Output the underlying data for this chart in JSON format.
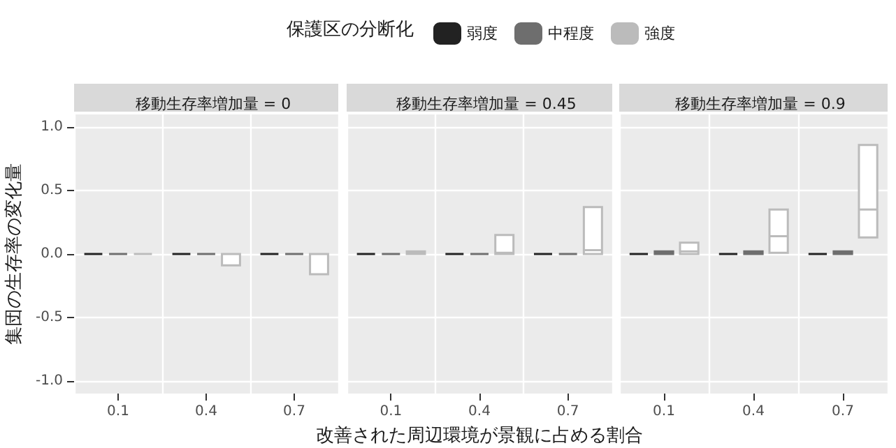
{
  "chart_data": [
    {
      "type": "box",
      "title": "移動生存率増加量 = 0",
      "ylabel": "集団の生存率の変化量",
      "legend_title": "保護区の分断化",
      "categories": [
        "0.1",
        "0.4",
        "0.7"
      ],
      "ylim": [
        -1.1,
        1.1
      ],
      "yticks": [
        {
          "value": -1,
          "label": "-1.0"
        },
        -0.5,
        {
          "value": 0,
          "label": "0.0"
        },
        0.5,
        {
          "value": 1,
          "label": "1.0"
        }
      ],
      "grid": true,
      "legend": "top",
      "series": [
        {
          "name": "弱度",
          "color": "#222222",
          "boxes": [
            {
              "low": 0,
              "q1": 0,
              "median": 0,
              "q3": 0,
              "high": 0
            },
            {
              "low": 0,
              "q1": 0,
              "median": 0,
              "q3": 0,
              "high": 0
            },
            {
              "low": 0,
              "q1": 0,
              "median": 0,
              "q3": 0,
              "high": 0
            }
          ]
        },
        {
          "name": "中程度",
          "color": "#6e6e6e",
          "boxes": [
            {
              "low": 0,
              "q1": 0,
              "median": 0,
              "q3": 0,
              "high": 0
            },
            {
              "low": 0,
              "q1": 0,
              "median": 0,
              "q3": 0,
              "high": 0
            },
            {
              "low": 0,
              "q1": 0,
              "median": 0,
              "q3": 0,
              "high": 0
            }
          ]
        },
        {
          "name": "強度",
          "color": "#bbbbbb",
          "boxes": [
            {
              "low": 0,
              "q1": 0,
              "median": 0,
              "q3": 0,
              "high": 0
            },
            {
              "low": -0.09,
              "q1": -0.09,
              "median": 0,
              "q3": 0,
              "high": 0
            },
            {
              "low": -0.16,
              "q1": -0.16,
              "median": 0,
              "q3": 0,
              "high": 0
            }
          ]
        }
      ]
    },
    {
      "type": "box",
      "title": "移動生存率増加量 = 0.45",
      "xlabel": "改善された周辺環境が景観に占める割合",
      "categories": [
        "0.1",
        "0.4",
        "0.7"
      ],
      "ylim": [
        -1.1,
        1.1
      ],
      "yticks": [
        -1,
        -0.5,
        0,
        0.5,
        1
      ],
      "grid": true,
      "legend": false,
      "tick_labels": "x",
      "series": [
        {
          "color": "#222222",
          "boxes": [
            {
              "low": 0,
              "q1": 0,
              "median": 0,
              "q3": 0,
              "high": 0
            },
            {
              "low": 0,
              "q1": 0,
              "median": 0,
              "q3": 0,
              "high": 0
            },
            {
              "low": 0,
              "q1": 0,
              "median": 0,
              "q3": 0,
              "high": 0
            }
          ]
        },
        {
          "color": "#6e6e6e",
          "boxes": [
            {
              "low": 0,
              "q1": 0,
              "median": 0,
              "q3": 0,
              "high": 0
            },
            {
              "low": 0,
              "q1": 0,
              "median": 0,
              "q3": 0,
              "high": 0
            },
            {
              "low": 0,
              "q1": 0,
              "median": 0,
              "q3": 0,
              "high": 0
            }
          ]
        },
        {
          "color": "#bbbbbb",
          "boxes": [
            {
              "low": 0,
              "q1": 0,
              "median": 0.01,
              "q3": 0.02,
              "high": 0.02
            },
            {
              "low": 0,
              "q1": 0,
              "median": 0.01,
              "q3": 0.15,
              "high": 0.15
            },
            {
              "low": 0,
              "q1": 0,
              "median": 0.03,
              "q3": 0.37,
              "high": 0.37
            }
          ]
        }
      ]
    },
    {
      "type": "box",
      "title": "移動生存率増加量 = 0.9",
      "categories": [
        "0.1",
        "0.4",
        "0.7"
      ],
      "ylim": [
        -1.1,
        1.1
      ],
      "yticks": [
        -1,
        -0.5,
        0,
        0.5,
        1
      ],
      "grid": true,
      "legend": false,
      "tick_labels": "x",
      "series": [
        {
          "color": "#222222",
          "boxes": [
            {
              "low": 0,
              "q1": 0,
              "median": 0,
              "q3": 0,
              "high": 0
            },
            {
              "low": 0,
              "q1": 0,
              "median": 0,
              "q3": 0,
              "high": 0
            },
            {
              "low": 0,
              "q1": 0,
              "median": 0,
              "q3": 0,
              "high": 0
            }
          ]
        },
        {
          "color": "#6e6e6e",
          "boxes": [
            {
              "low": 0,
              "q1": 0,
              "median": 0.01,
              "q3": 0.02,
              "high": 0.02
            },
            {
              "low": 0,
              "q1": 0,
              "median": 0.01,
              "q3": 0.02,
              "high": 0.02
            },
            {
              "low": 0,
              "q1": 0,
              "median": 0.01,
              "q3": 0.02,
              "high": 0.02
            }
          ]
        },
        {
          "color": "#bbbbbb",
          "boxes": [
            {
              "low": 0,
              "q1": 0,
              "median": 0.02,
              "q3": 0.09,
              "high": 0.09
            },
            {
              "low": 0.01,
              "q1": 0.01,
              "median": 0.14,
              "q3": 0.35,
              "high": 0.35
            },
            {
              "low": 0.13,
              "q1": 0.13,
              "median": 0.35,
              "q3": 0.86,
              "high": 0.86
            }
          ]
        }
      ]
    }
  ]
}
